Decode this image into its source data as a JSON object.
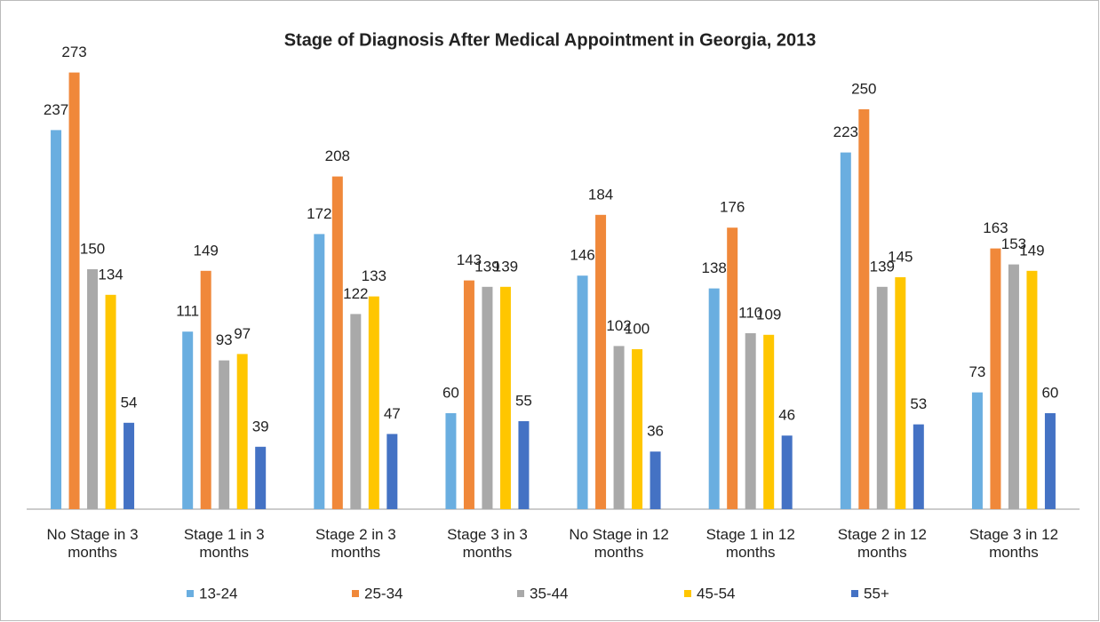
{
  "chart_data": {
    "type": "bar",
    "title": "Stage of Diagnosis After Medical Appointment in Georgia, 2013",
    "categories": [
      "No Stage in 3 months",
      "Stage 1 in 3 months",
      "Stage 2 in 3 months",
      "Stage 3 in 3 months",
      "No Stage in 12 months",
      "Stage 1 in 12 months",
      "Stage 2 in 12 months",
      "Stage 3 in 12 months"
    ],
    "series": [
      {
        "name": "13-24",
        "color": "#6aaee0",
        "values": [
          237,
          111,
          172,
          60,
          146,
          138,
          223,
          73
        ]
      },
      {
        "name": "25-34",
        "color": "#f0883a",
        "values": [
          273,
          149,
          208,
          143,
          184,
          176,
          250,
          163
        ]
      },
      {
        "name": "35-44",
        "color": "#a9a9a9",
        "values": [
          150,
          93,
          122,
          139,
          102,
          110,
          139,
          153
        ]
      },
      {
        "name": "45-54",
        "color": "#ffc600",
        "values": [
          134,
          97,
          133,
          139,
          100,
          109,
          145,
          149
        ]
      },
      {
        "name": "55+",
        "color": "#4472c4",
        "values": [
          54,
          39,
          47,
          55,
          36,
          46,
          53,
          60
        ]
      }
    ],
    "ylim": [
      0,
      300
    ],
    "legend": "bottom"
  }
}
